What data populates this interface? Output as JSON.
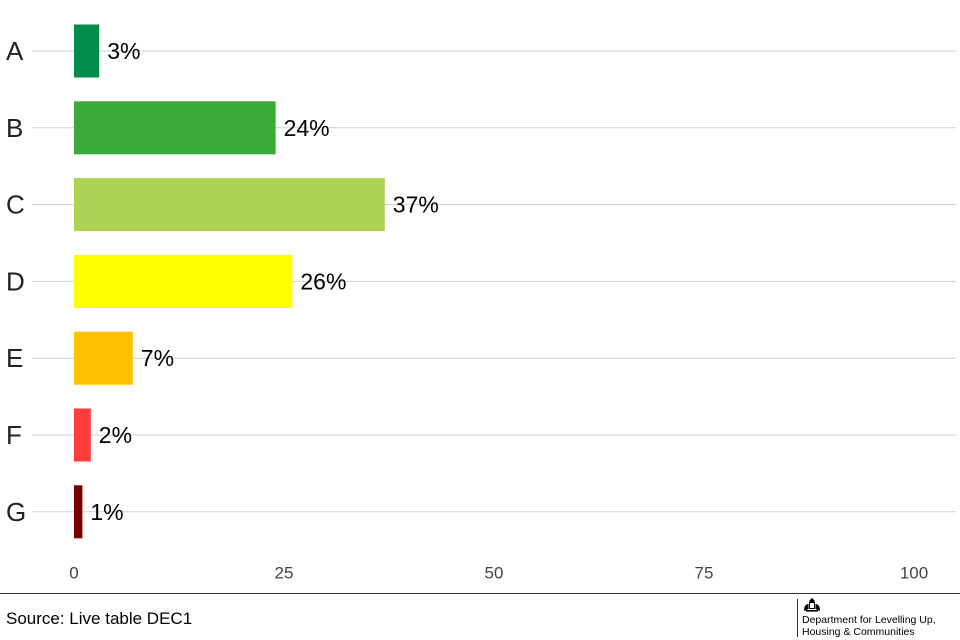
{
  "chart_data": {
    "type": "bar",
    "orientation": "horizontal",
    "categories": [
      "A",
      "B",
      "C",
      "D",
      "E",
      "F",
      "G"
    ],
    "values": [
      3,
      24,
      37,
      26,
      7,
      2,
      1
    ],
    "value_labels": [
      "3%",
      "24%",
      "37%",
      "26%",
      "7%",
      "2%",
      "1%"
    ],
    "colors": [
      "#008c4a",
      "#3aaa3a",
      "#acd452",
      "#ffff00",
      "#ffc000",
      "#ff3c3c",
      "#7a0000"
    ],
    "xlim": [
      0,
      100
    ],
    "xticks": [
      0,
      25,
      50,
      75,
      100
    ],
    "grid": "horizontal lines at each category",
    "legend": "none"
  },
  "footer": {
    "source": "Source: Live table DEC1",
    "logo": {
      "icon": "royal-crest-icon",
      "line1": "Department for Levelling Up,",
      "line2": "Housing & Communities"
    }
  }
}
